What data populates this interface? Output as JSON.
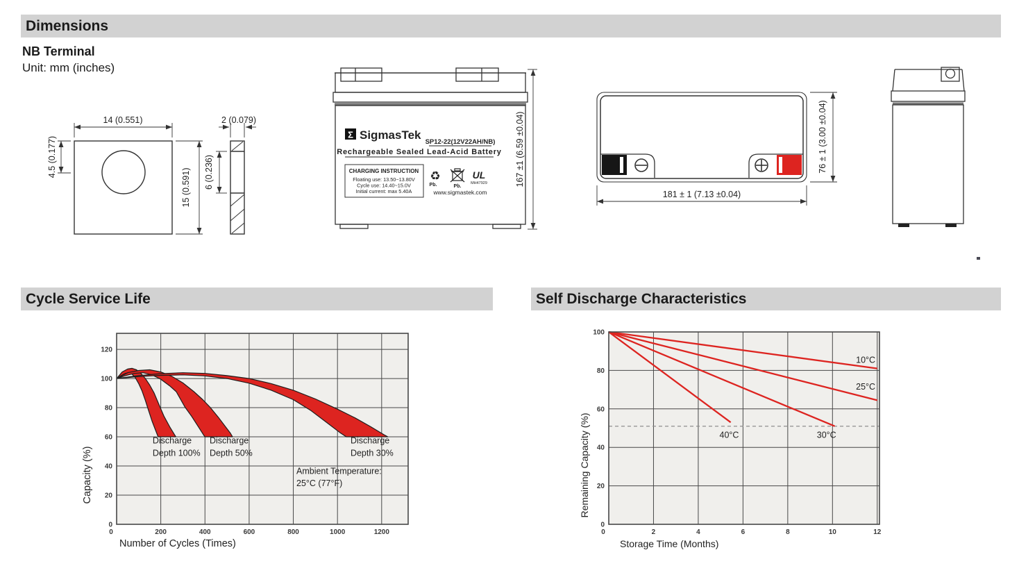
{
  "sections": {
    "dimensions": {
      "title": "Dimensions",
      "terminal_type": "NB Terminal",
      "unit_note": "Unit: mm (inches)"
    },
    "cycle_service_life": {
      "title": "Cycle Service Life"
    },
    "self_discharge": {
      "title": "Self Discharge Characteristics"
    }
  },
  "dimensions_drawings": {
    "plate_front": {
      "width": "14 (0.551)",
      "hole_offset": "4.5 (0.177)",
      "height": "15 (0.591)"
    },
    "plate_side": {
      "thickness": "2 (0.079)",
      "hole_height": "6 (0.236)"
    },
    "front_view": {
      "height": "167 ±1 (6.59 ±0.04)"
    },
    "top_view": {
      "length": "181 ± 1 (7.13 ±0.04)",
      "width": "76 ± 1 (3.00 ±0.04)"
    },
    "label": {
      "sigma": "Σ",
      "brand": "SigmasTek",
      "model": "SP12-22(12V22AH/NB)",
      "subtitle": "Rechargeable Sealed Lead-Acid Battery",
      "charging_title": "CHARGING INSTRUCTION",
      "charging_line1": "Floating use: 13.50~13.80V",
      "charging_line2": "Cycle use: 14.40~15.0V",
      "charging_line3": "Initial current: max 5.40A",
      "pb_recycle": "Pb.",
      "pb_bin": "Pb.",
      "recycle_glyph": "♻",
      "ul_mark": "UL",
      "ul_code": "MH47929",
      "website": "www.sigmastek.com"
    }
  },
  "colors": {
    "accent_red": "#dd2420",
    "header_bg": "#d2d2d2",
    "plot_bg": "#f0efec",
    "grid": "#474747",
    "ink": "#222222",
    "tick": "#3a3a3a",
    "band_edge": "#1d1d1d",
    "dashed": "#8f8f8f"
  },
  "chart_data": [
    {
      "type": "area",
      "title": "Cycle Service Life",
      "xlabel": "Number of Cycles (Times)",
      "ylabel": "Capacity (%)",
      "xlim": [
        0,
        1320
      ],
      "ylim": [
        0,
        131
      ],
      "xticks": [
        0,
        200,
        400,
        600,
        800,
        1000,
        1200
      ],
      "yticks": [
        0,
        20,
        40,
        60,
        80,
        100,
        120
      ],
      "grid": true,
      "legend_position": "none",
      "bands": [
        {
          "name": "Discharge Depth 100%",
          "upper": [
            [
              0,
              100
            ],
            [
              25,
              104.5
            ],
            [
              50,
              106.5
            ],
            [
              70,
              107
            ],
            [
              90,
              106
            ],
            [
              110,
              103.5
            ],
            [
              130,
              100
            ],
            [
              150,
              95.5
            ],
            [
              170,
              90
            ],
            [
              195,
              81
            ],
            [
              215,
              74
            ],
            [
              240,
              67
            ],
            [
              262,
              61.5
            ],
            [
              268,
              60
            ]
          ],
          "lower": [
            [
              0,
              100
            ],
            [
              20,
              102
            ],
            [
              40,
              103.5
            ],
            [
              55,
              104
            ],
            [
              70,
              103
            ],
            [
              85,
              100.5
            ],
            [
              100,
              96.5
            ],
            [
              115,
              91.5
            ],
            [
              130,
              85
            ],
            [
              145,
              78
            ],
            [
              160,
              71
            ],
            [
              175,
              65
            ],
            [
              188,
              60
            ]
          ]
        },
        {
          "name": "Discharge Depth 50%",
          "upper": [
            [
              0,
              100
            ],
            [
              50,
              104
            ],
            [
              100,
              105.5
            ],
            [
              150,
              106
            ],
            [
              200,
              104.5
            ],
            [
              250,
              101.5
            ],
            [
              300,
              97
            ],
            [
              350,
              91
            ],
            [
              390,
              85.5
            ],
            [
              425,
              80
            ],
            [
              460,
              73.5
            ],
            [
              495,
              66.5
            ],
            [
              515,
              62.5
            ],
            [
              525,
              60
            ]
          ],
          "lower": [
            [
              0,
              100
            ],
            [
              40,
              102
            ],
            [
              80,
              103.5
            ],
            [
              120,
              104
            ],
            [
              160,
              102.5
            ],
            [
              200,
              99.5
            ],
            [
              240,
              95
            ],
            [
              270,
              91
            ],
            [
              310,
              80.3
            ],
            [
              340,
              74
            ],
            [
              370,
              67
            ],
            [
              395,
              61
            ],
            [
              400,
              60
            ]
          ]
        },
        {
          "name": "Discharge Depth 30%",
          "upper": [
            [
              0,
              100
            ],
            [
              100,
              102
            ],
            [
              200,
              103.3
            ],
            [
              300,
              104
            ],
            [
              400,
              103.5
            ],
            [
              500,
              102
            ],
            [
              600,
              100
            ],
            [
              700,
              96.5
            ],
            [
              800,
              92
            ],
            [
              900,
              86
            ],
            [
              1000,
              79
            ],
            [
              1080,
              73
            ],
            [
              1150,
              67
            ],
            [
              1210,
              61.5
            ],
            [
              1228,
              60
            ]
          ],
          "lower": [
            [
              0,
              100
            ],
            [
              100,
              101.3
            ],
            [
              200,
              102.2
            ],
            [
              300,
              102.5
            ],
            [
              400,
              101.8
            ],
            [
              500,
              100
            ],
            [
              600,
              96.8
            ],
            [
              700,
              92
            ],
            [
              800,
              85.5
            ],
            [
              880,
              78
            ],
            [
              950,
              70
            ],
            [
              1010,
              63
            ],
            [
              1040,
              60
            ]
          ]
        }
      ],
      "annotations": [
        {
          "lines": [
            "Discharge",
            "Depth 100%"
          ],
          "x": 163,
          "y": [
            55.5,
            47
          ]
        },
        {
          "lines": [
            "Discharge",
            "Depth 50%"
          ],
          "x": 421,
          "y": [
            55.5,
            47
          ]
        },
        {
          "lines": [
            "Discharge",
            "Depth 30%"
          ],
          "x": 1059,
          "y": [
            55.5,
            47
          ]
        },
        {
          "lines": [
            "Ambient Temperature:",
            "25°C (77°F)"
          ],
          "x": 814,
          "y": [
            34.5,
            26.3
          ]
        }
      ]
    },
    {
      "type": "line",
      "title": "Self Discharge Characteristics",
      "xlabel": "Storage Time (Months)",
      "ylabel": "Remaining Capacity (%)",
      "xlim": [
        0,
        12.1
      ],
      "ylim": [
        0,
        100
      ],
      "xticks": [
        0,
        2,
        4,
        6,
        8,
        10,
        12
      ],
      "yticks": [
        0,
        20,
        40,
        60,
        80,
        100
      ],
      "grid": true,
      "legend_position": "inline-labels",
      "series": [
        {
          "name": "10°C",
          "points": [
            [
              0,
              100
            ],
            [
              12,
              81
            ]
          ],
          "label_pos": [
            11.05,
            84
          ]
        },
        {
          "name": "25°C",
          "points": [
            [
              0,
              100
            ],
            [
              12,
              64.5
            ]
          ],
          "label_pos": [
            11.05,
            70
          ]
        },
        {
          "name": "30°C",
          "points": [
            [
              0,
              100
            ],
            [
              10.1,
              51
            ]
          ],
          "label_pos": [
            9.3,
            45
          ]
        },
        {
          "name": "40°C",
          "points": [
            [
              0,
              100
            ],
            [
              5.45,
              53
            ]
          ],
          "label_pos": [
            4.95,
            45
          ]
        }
      ],
      "dashed_line_y": 51
    }
  ]
}
